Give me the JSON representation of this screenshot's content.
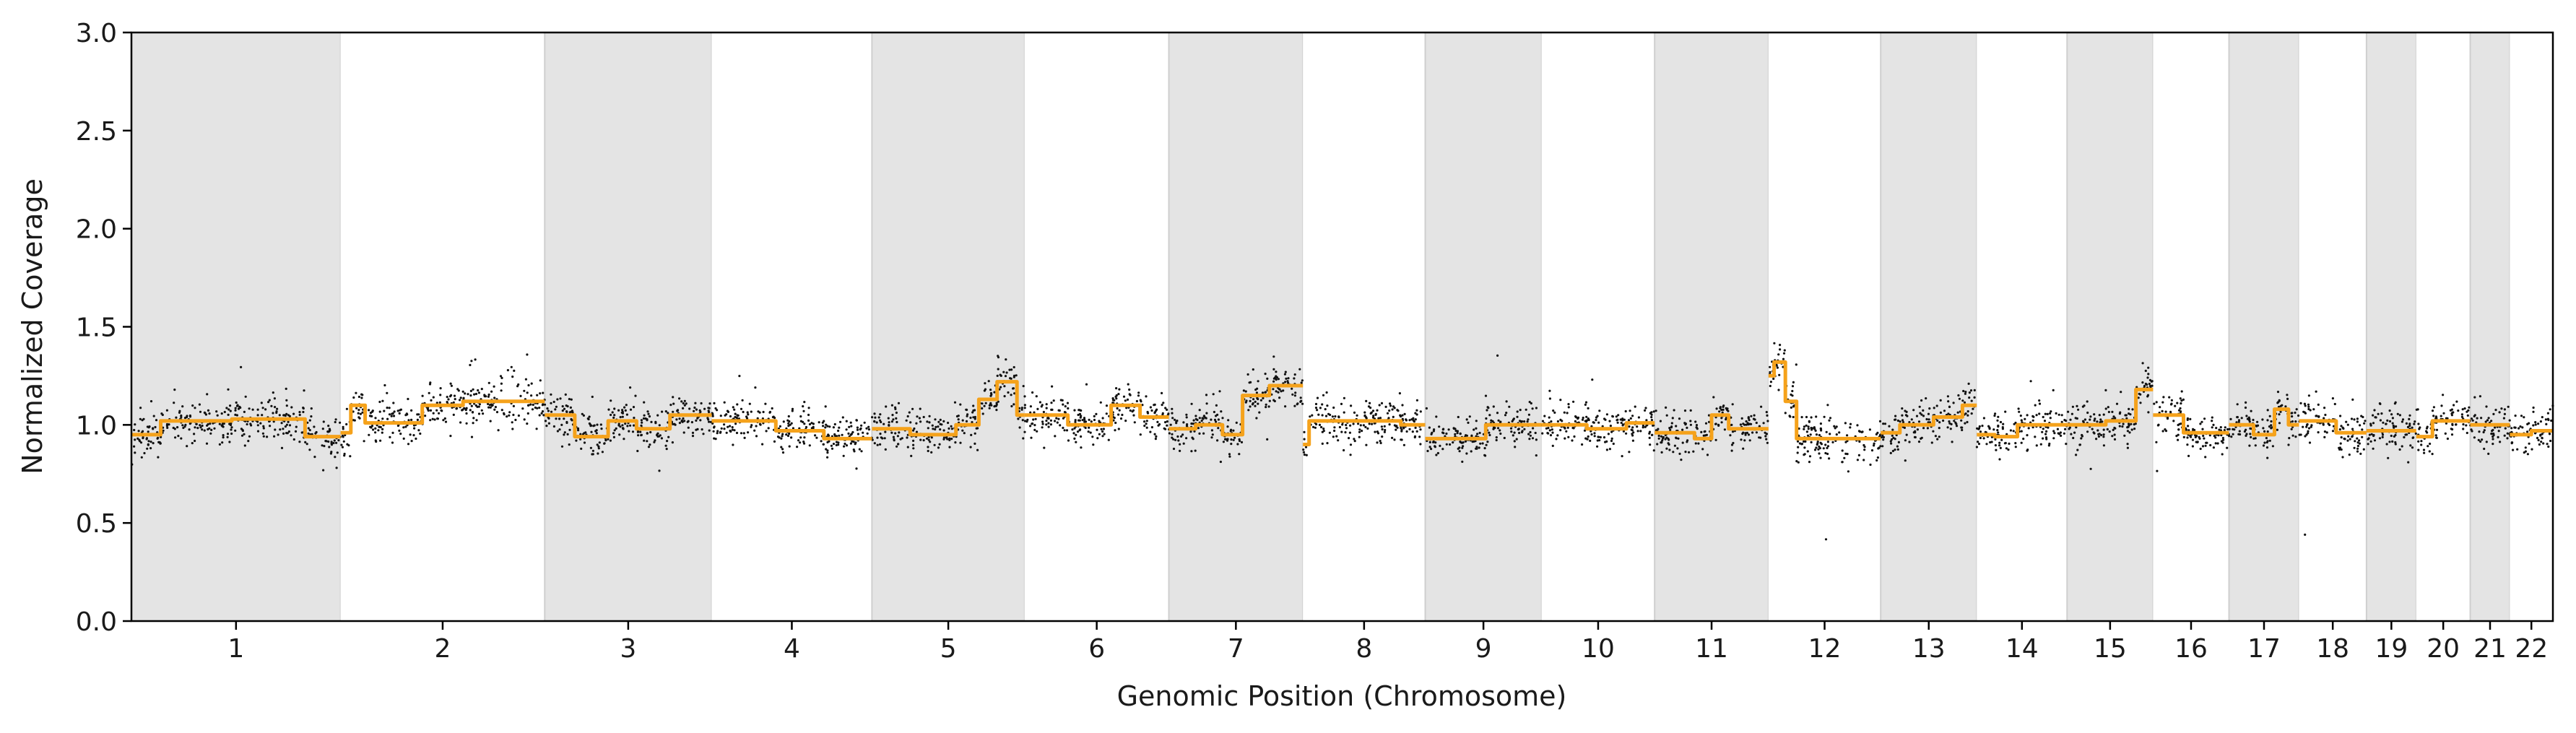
{
  "chart_data": {
    "type": "scatter",
    "xlabel": "Genomic Position (Chromosome)",
    "ylabel": "Normalized Coverage",
    "ylim": [
      0,
      3.0
    ],
    "yticks": [
      0.0,
      0.5,
      1.0,
      1.5,
      2.0,
      2.5,
      3.0
    ],
    "ytick_labels": [
      "0.0",
      "0.5",
      "1.0",
      "1.5",
      "2.0",
      "2.5",
      "3.0"
    ],
    "grid": false,
    "legend": "none",
    "chromosome_band_colors": [
      "#e4e4e4",
      "#ffffff"
    ],
    "point_color": "#111111",
    "segment_color": "#f5a21b",
    "chromosomes": [
      {
        "label": "1",
        "length": 248,
        "segments": [
          [
            0.0,
            0.14,
            0.95
          ],
          [
            0.14,
            0.48,
            1.02
          ],
          [
            0.48,
            0.62,
            1.03
          ],
          [
            0.62,
            0.83,
            1.03
          ],
          [
            0.83,
            1.0,
            0.94
          ]
        ]
      },
      {
        "label": "2",
        "length": 242,
        "segments": [
          [
            0.0,
            0.05,
            0.96
          ],
          [
            0.05,
            0.12,
            1.1
          ],
          [
            0.12,
            0.4,
            1.01
          ],
          [
            0.4,
            0.6,
            1.1
          ],
          [
            0.6,
            1.0,
            1.12
          ]
        ]
      },
      {
        "label": "3",
        "length": 198,
        "segments": [
          [
            0.0,
            0.18,
            1.05
          ],
          [
            0.18,
            0.38,
            0.94
          ],
          [
            0.38,
            0.55,
            1.02
          ],
          [
            0.55,
            0.75,
            0.98
          ],
          [
            0.75,
            1.0,
            1.05
          ]
        ]
      },
      {
        "label": "4",
        "length": 190,
        "segments": [
          [
            0.0,
            0.4,
            1.02
          ],
          [
            0.4,
            0.7,
            0.97
          ],
          [
            0.7,
            1.0,
            0.93
          ]
        ]
      },
      {
        "label": "5",
        "length": 181,
        "segments": [
          [
            0.0,
            0.25,
            0.98
          ],
          [
            0.25,
            0.55,
            0.95
          ],
          [
            0.55,
            0.7,
            1.0
          ],
          [
            0.7,
            0.82,
            1.13
          ],
          [
            0.82,
            0.95,
            1.22
          ],
          [
            0.95,
            1.0,
            1.05
          ]
        ]
      },
      {
        "label": "6",
        "length": 171,
        "segments": [
          [
            0.0,
            0.3,
            1.05
          ],
          [
            0.3,
            0.6,
            1.0
          ],
          [
            0.6,
            0.8,
            1.1
          ],
          [
            0.8,
            1.0,
            1.04
          ]
        ]
      },
      {
        "label": "7",
        "length": 159,
        "segments": [
          [
            0.0,
            0.2,
            0.98
          ],
          [
            0.2,
            0.4,
            1.0
          ],
          [
            0.4,
            0.55,
            0.95
          ],
          [
            0.55,
            0.75,
            1.15
          ],
          [
            0.75,
            1.0,
            1.2
          ]
        ]
      },
      {
        "label": "8",
        "length": 145,
        "segments": [
          [
            0.0,
            0.05,
            0.9
          ],
          [
            0.05,
            0.8,
            1.02
          ],
          [
            0.8,
            1.0,
            1.0
          ]
        ]
      },
      {
        "label": "9",
        "length": 138,
        "segments": [
          [
            0.0,
            0.52,
            0.93
          ],
          [
            0.52,
            1.0,
            1.0
          ]
        ]
      },
      {
        "label": "10",
        "length": 134,
        "segments": [
          [
            0.0,
            0.4,
            1.0
          ],
          [
            0.4,
            0.75,
            0.98
          ],
          [
            0.75,
            1.0,
            1.01
          ]
        ]
      },
      {
        "label": "11",
        "length": 135,
        "segments": [
          [
            0.0,
            0.35,
            0.96
          ],
          [
            0.35,
            0.5,
            0.93
          ],
          [
            0.5,
            0.65,
            1.05
          ],
          [
            0.65,
            1.0,
            0.98
          ]
        ]
      },
      {
        "label": "12",
        "length": 133,
        "segments": [
          [
            0.0,
            0.05,
            1.25
          ],
          [
            0.05,
            0.15,
            1.32
          ],
          [
            0.15,
            0.25,
            1.12
          ],
          [
            0.25,
            1.0,
            0.93
          ]
        ]
      },
      {
        "label": "13",
        "length": 114,
        "segments": [
          [
            0.0,
            0.2,
            0.96
          ],
          [
            0.2,
            0.55,
            1.0
          ],
          [
            0.55,
            0.85,
            1.04
          ],
          [
            0.85,
            1.0,
            1.1
          ]
        ]
      },
      {
        "label": "14",
        "length": 107,
        "segments": [
          [
            0.0,
            0.2,
            0.95
          ],
          [
            0.2,
            0.45,
            0.94
          ],
          [
            0.45,
            1.0,
            1.0
          ]
        ]
      },
      {
        "label": "15",
        "length": 102,
        "segments": [
          [
            0.0,
            0.45,
            1.0
          ],
          [
            0.45,
            0.8,
            1.02
          ],
          [
            0.8,
            1.0,
            1.18
          ]
        ]
      },
      {
        "label": "16",
        "length": 90,
        "segments": [
          [
            0.0,
            0.4,
            1.05
          ],
          [
            0.4,
            1.0,
            0.96
          ]
        ]
      },
      {
        "label": "17",
        "length": 83,
        "segments": [
          [
            0.0,
            0.35,
            1.0
          ],
          [
            0.35,
            0.65,
            0.95
          ],
          [
            0.65,
            0.85,
            1.08
          ],
          [
            0.85,
            1.0,
            1.0
          ]
        ]
      },
      {
        "label": "18",
        "length": 80,
        "segments": [
          [
            0.0,
            0.55,
            1.02
          ],
          [
            0.55,
            1.0,
            0.96
          ]
        ]
      },
      {
        "label": "19",
        "length": 59,
        "segments": [
          [
            0.0,
            1.0,
            0.97
          ]
        ]
      },
      {
        "label": "20",
        "length": 64,
        "segments": [
          [
            0.0,
            0.3,
            0.94
          ],
          [
            0.3,
            1.0,
            1.02
          ]
        ]
      },
      {
        "label": "21",
        "length": 47,
        "segments": [
          [
            0.0,
            1.0,
            1.0
          ]
        ]
      },
      {
        "label": "22",
        "length": 51,
        "segments": [
          [
            0.0,
            0.5,
            0.95
          ],
          [
            0.5,
            1.0,
            0.97
          ]
        ]
      }
    ]
  }
}
